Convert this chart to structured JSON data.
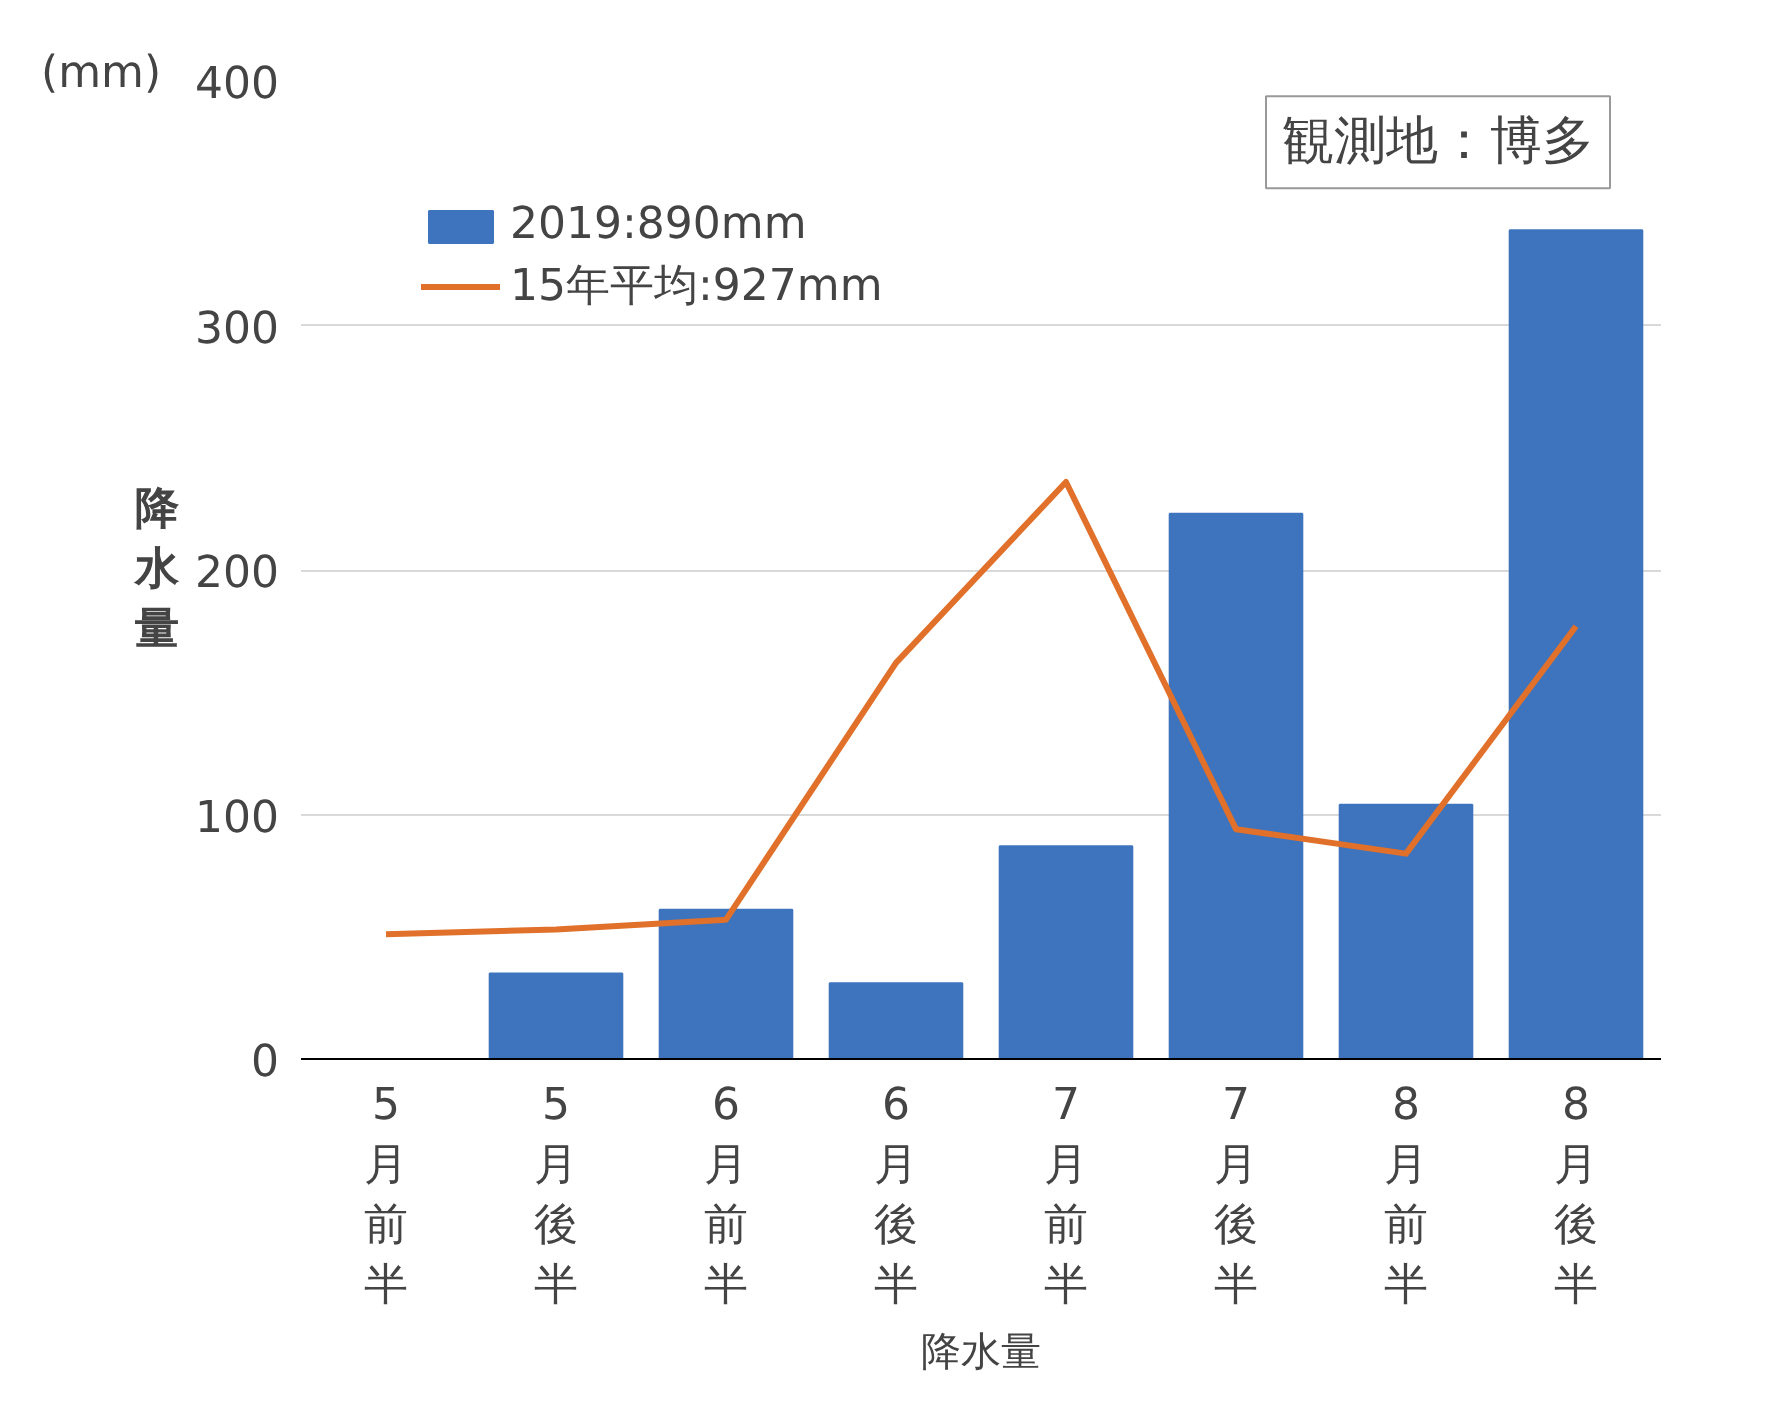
{
  "chart_data": {
    "type": "bar",
    "ylabel": "降水量",
    "xlabel": "降水量",
    "annotations": [
      "(mm)",
      "観測地：博多"
    ],
    "categories": [
      "5月前半",
      "5月後半",
      "6月前半",
      "6月後半",
      "7月前半",
      "7月後半",
      "8月前半",
      "8月後半"
    ],
    "series": [
      {
        "name": "2019:890mm",
        "color": "#3d74bd",
        "values": [
          0,
          35,
          61,
          31,
          87,
          223,
          104,
          339
        ]
      },
      {
        "name": "15年平均:927mm",
        "type": "line",
        "color": "#e0702a",
        "values": [
          51,
          53,
          57,
          162,
          236,
          94,
          84,
          177
        ]
      }
    ],
    "ylim": [
      0,
      400
    ],
    "yticks": [
      0,
      100,
      200,
      300,
      400
    ],
    "grid": "y",
    "legend": "top left",
    "marker": "none",
    "line_style": "solid"
  }
}
